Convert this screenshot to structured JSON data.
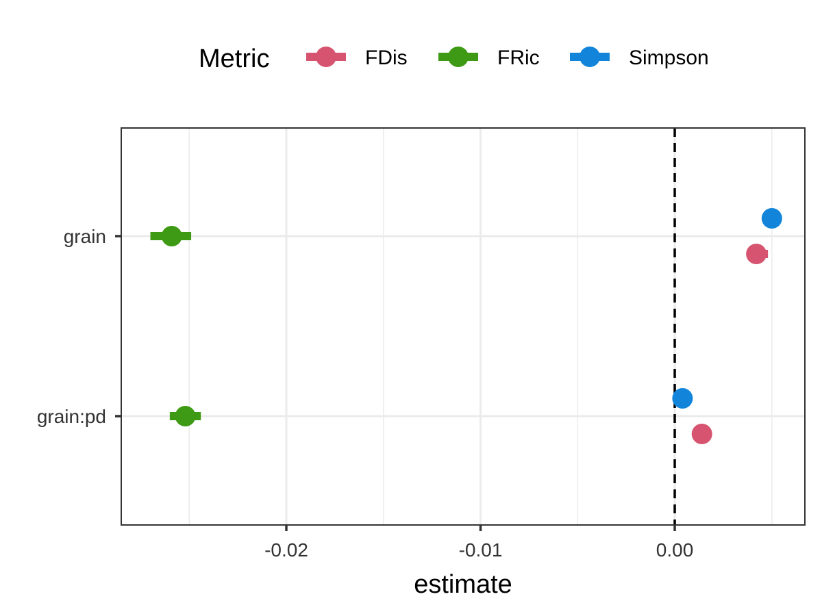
{
  "chart_data": {
    "type": "scatter",
    "xlabel": "estimate",
    "ylabel": "",
    "xlim": [
      -0.0285,
      0.0067
    ],
    "x_ticks": [
      -0.02,
      -0.01,
      0.0
    ],
    "x_tick_labels": [
      "-0.02",
      "-0.01",
      "0.00"
    ],
    "categories": [
      "grain",
      "grain:pd"
    ],
    "reference_line": {
      "x": 0,
      "style": "dashed"
    },
    "grid": true,
    "legend": {
      "title": "Metric",
      "position": "top"
    },
    "series": [
      {
        "name": "FDis",
        "color": "#D6546F",
        "points": [
          {
            "category": "grain",
            "estimate": 0.0042,
            "low": 0.0038,
            "high": 0.0048
          },
          {
            "category": "grain:pd",
            "estimate": 0.0014,
            "low": 0.0014,
            "high": 0.0014
          }
        ]
      },
      {
        "name": "FRic",
        "color": "#3E9914",
        "points": [
          {
            "category": "grain",
            "estimate": -0.0259,
            "low": -0.027,
            "high": -0.0249
          },
          {
            "category": "grain:pd",
            "estimate": -0.0252,
            "low": -0.026,
            "high": -0.0244
          }
        ]
      },
      {
        "name": "Simpson",
        "color": "#1285DB",
        "points": [
          {
            "category": "grain",
            "estimate": 0.005,
            "low": 0.005,
            "high": 0.005
          },
          {
            "category": "grain:pd",
            "estimate": 0.0004,
            "low": 0.0004,
            "high": 0.0004
          }
        ]
      }
    ]
  }
}
